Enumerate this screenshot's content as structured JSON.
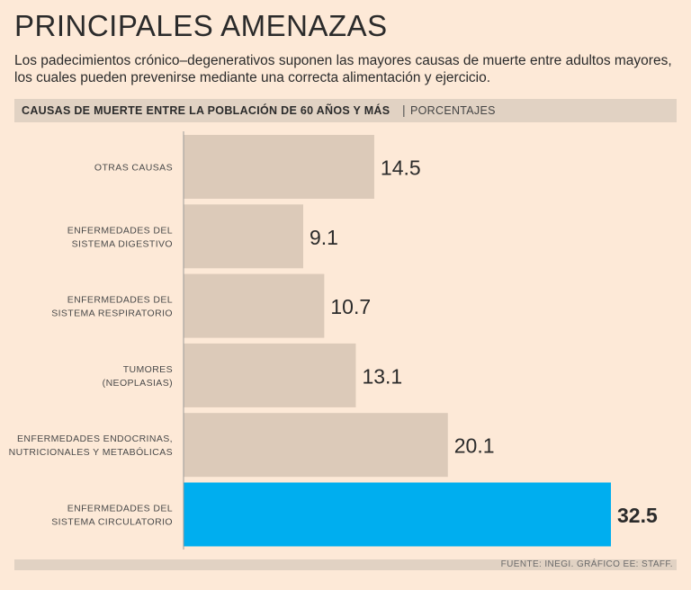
{
  "header": {
    "title": "PRINCIPALES AMENAZAS",
    "subtitle_line1": "Los padecimientos crónico–degenerativos suponen las mayores causas de muerte entre adultos mayores,",
    "subtitle_line2": "los cuales pueden prevenirse mediante una correcta alimentación y ejercicio."
  },
  "chart_header": {
    "main": "CAUSAS DE MUERTE ENTRE LA POBLACIÓN DE 60 AÑOS Y MÁS",
    "separator": "|",
    "unit": "PORCENTAJES"
  },
  "footer": {
    "source": "FUENTE: INEGI. GRÁFICO EE: STAFF."
  },
  "colors": {
    "bar_default": "#dccab9",
    "bar_highlight": "#00aeef",
    "axis": "#9a9a9a",
    "label": "#4a4a4a",
    "value": "#2b2b2b"
  },
  "chart_data": {
    "type": "bar",
    "orientation": "horizontal",
    "title": "CAUSAS DE MUERTE ENTRE LA POBLACIÓN DE 60 AÑOS Y MÁS",
    "unit": "PORCENTAJES",
    "xlim": [
      0,
      32.5
    ],
    "categories": [
      [
        "OTRAS CAUSAS"
      ],
      [
        "ENFERMEDADES DEL",
        "SISTEMA DIGESTIVO"
      ],
      [
        "ENFERMEDADES DEL",
        "SISTEMA RESPIRATORIO"
      ],
      [
        "TUMORES",
        "(NEOPLASIAS)"
      ],
      [
        "ENFERMEDADES ENDOCRINAS,",
        "NUTRICIONALES Y METABÓLICAS"
      ],
      [
        "ENFERMEDADES DEL",
        "SISTEMA CIRCULATORIO"
      ]
    ],
    "values": [
      14.5,
      9.1,
      10.7,
      13.1,
      20.1,
      32.5
    ],
    "value_labels": [
      "14.5",
      "9.1",
      "10.7",
      "13.1",
      "20.1",
      "32.5"
    ],
    "highlight_index": 5
  }
}
